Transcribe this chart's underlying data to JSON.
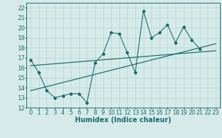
{
  "x_data": [
    0,
    1,
    2,
    3,
    4,
    5,
    6,
    7,
    8,
    9,
    10,
    11,
    12,
    13,
    14,
    15,
    16,
    17,
    18,
    19,
    20,
    21,
    22,
    23
  ],
  "y_main": [
    16.8,
    15.5,
    13.7,
    13.0,
    13.2,
    13.4,
    13.4,
    12.5,
    16.5,
    17.4,
    19.5,
    19.4,
    17.5,
    15.5,
    21.7,
    19.0,
    19.5,
    20.3,
    18.5,
    20.1,
    18.8,
    17.9,
    null,
    null
  ],
  "trend1_x": [
    0,
    23
  ],
  "trend1_y": [
    16.2,
    17.7
  ],
  "trend2_x": [
    0,
    23
  ],
  "trend2_y": [
    13.7,
    18.4
  ],
  "xlim": [
    -0.5,
    23.5
  ],
  "ylim": [
    12,
    22.5
  ],
  "xlabel": "Humidex (Indice chaleur)",
  "xticks": [
    0,
    1,
    2,
    3,
    4,
    5,
    6,
    7,
    8,
    9,
    10,
    11,
    12,
    13,
    14,
    15,
    16,
    17,
    18,
    19,
    20,
    21,
    22,
    23
  ],
  "yticks": [
    12,
    13,
    14,
    15,
    16,
    17,
    18,
    19,
    20,
    21,
    22
  ],
  "bg_color": "#d6ebe9",
  "grid_color": "#b4d4d0",
  "line_color": "#1a6b6b",
  "xlabel_fontsize": 7,
  "tick_fontsize": 6,
  "fig_width": 3.2,
  "fig_height": 2.0,
  "dpi": 100
}
